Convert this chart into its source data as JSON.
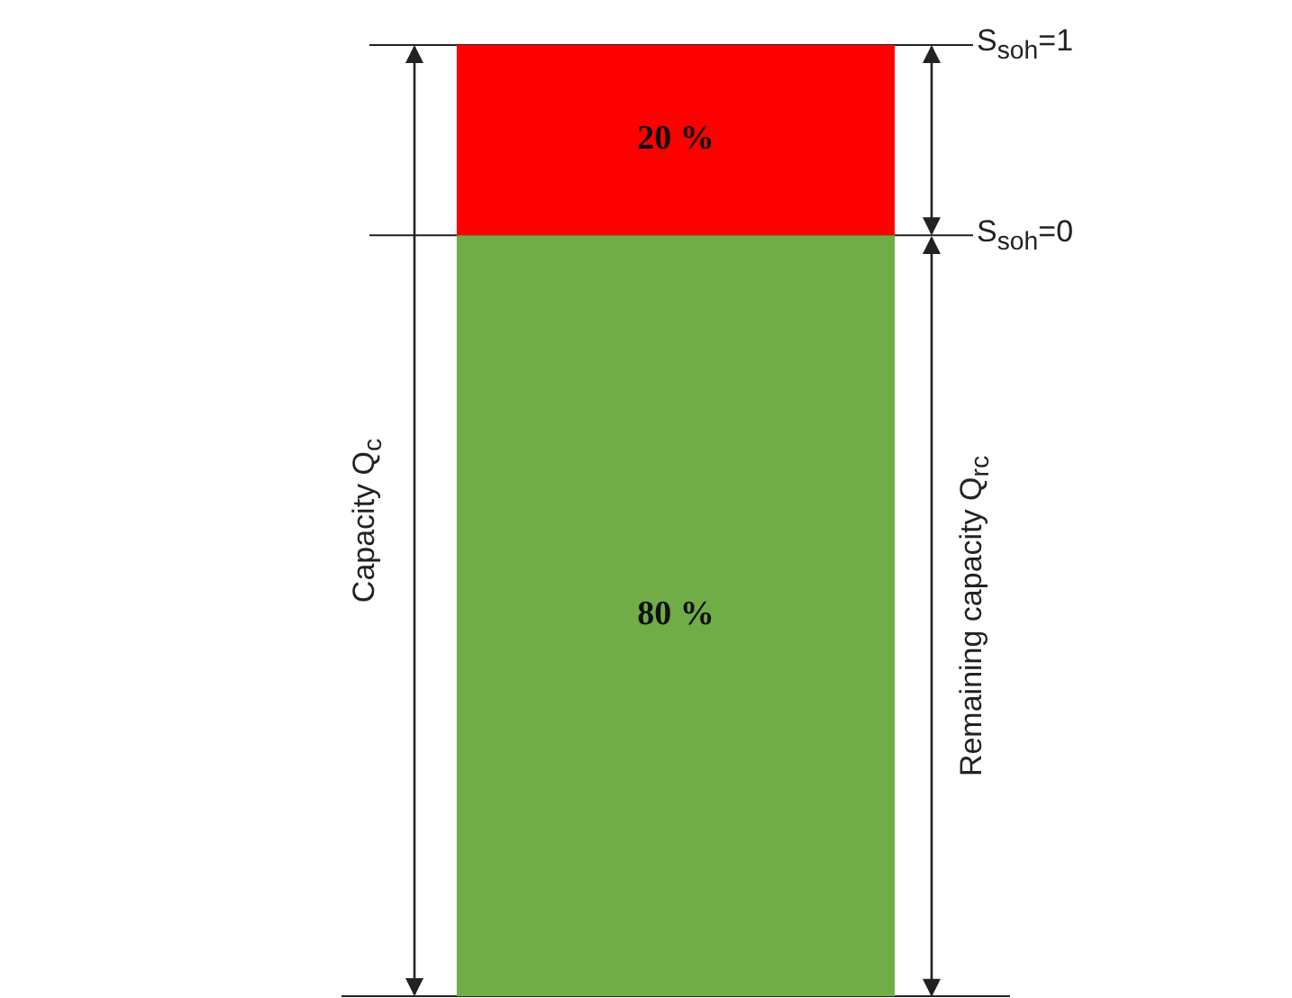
{
  "chart_data": {
    "type": "bar",
    "stacked": true,
    "categories": [
      null
    ],
    "series": [
      {
        "color": "#70ad47",
        "values": [
          80
        ],
        "value_labels": [
          "80 %"
        ]
      },
      {
        "color": "#ff0000",
        "values": [
          20
        ],
        "value_labels": [
          "20 %"
        ]
      }
    ],
    "ylim": [
      0,
      100
    ],
    "grid": false,
    "legend": false,
    "ref_lines": [
      {
        "axis": "y",
        "value": 100
      },
      {
        "axis": "y",
        "value": 80
      }
    ],
    "annotations": [
      "Capacity Q$_{c}$",
      "Remaining capacity Q$_{rc}$",
      "S$_{soh}$=1",
      "S$_{soh}$=0"
    ]
  }
}
